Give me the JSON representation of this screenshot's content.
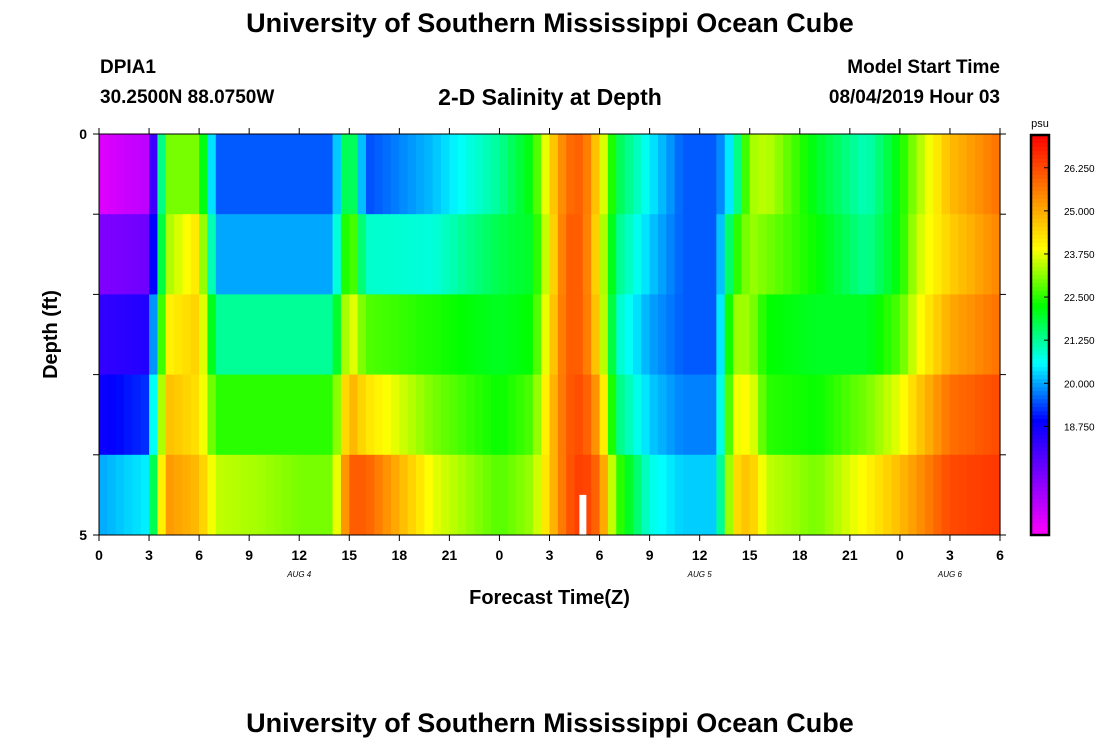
{
  "header": {
    "title": "University of Southern Mississippi Ocean Cube",
    "station_id": "DPIA1",
    "coords": "30.2500N 88.0750W",
    "plot_title": "2-D Salinity at Depth",
    "model_start_label": "Model Start Time",
    "model_start_value": "08/04/2019 Hour 03"
  },
  "footer": {
    "title": "University of Southern Mississippi Ocean Cube"
  },
  "chart_data": {
    "type": "heatmap",
    "title": "2-D Salinity at Depth",
    "xlabel": "Forecast Time(Z)",
    "ylabel": "Depth (ft)",
    "x_hours_from_start": [
      0,
      54
    ],
    "x_tick_labels": [
      "0",
      "3",
      "6",
      "9",
      "12",
      "15",
      "18",
      "21",
      "0",
      "3",
      "6",
      "9",
      "12",
      "15",
      "18",
      "21",
      "0",
      "3",
      "6"
    ],
    "date_labels": [
      {
        "text": "AUG 4",
        "at_hour": 12
      },
      {
        "text": "AUG 5",
        "at_hour": 36
      },
      {
        "text": "AUG 6",
        "at_hour": 51
      }
    ],
    "y_tick_labels": [
      "0",
      "5"
    ],
    "ylim": [
      0,
      5
    ],
    "depth_levels": [
      "0-1",
      "1-2",
      "2-3",
      "3-4",
      "4-5"
    ],
    "time_nodes": [
      0,
      3,
      4,
      6,
      7,
      10,
      12,
      14,
      15,
      16,
      20,
      24,
      26,
      27,
      28,
      29,
      30,
      31,
      33,
      35,
      37,
      38,
      39,
      40,
      43,
      46,
      48,
      49,
      51,
      54
    ],
    "values": [
      [
        16.0,
        16.5,
        23.0,
        22.5,
        19.5,
        19.5,
        19.5,
        19.5,
        21.8,
        19.0,
        20.5,
        21.0,
        22.5,
        24.5,
        25.5,
        26.0,
        24.5,
        21.8,
        20.5,
        19.5,
        19.5,
        20.0,
        23.0,
        23.5,
        21.5,
        21.0,
        22.5,
        23.0,
        25.0,
        26.0
      ],
      [
        16.0,
        16.5,
        23.0,
        23.5,
        19.5,
        19.5,
        19.5,
        19.5,
        23.0,
        19.8,
        19.8,
        21.5,
        22.0,
        24.0,
        26.0,
        26.0,
        24.0,
        21.8,
        20.5,
        19.5,
        19.5,
        21.5,
        23.5,
        23.5,
        22.5,
        21.0,
        22.0,
        23.5,
        24.5,
        25.5
      ],
      [
        18.5,
        18.5,
        23.5,
        25.0,
        20.5,
        20.5,
        20.5,
        20.5,
        23.5,
        22.0,
        21.8,
        22.0,
        22.0,
        24.0,
        26.0,
        26.0,
        24.0,
        21.0,
        20.0,
        19.5,
        19.5,
        23.0,
        23.0,
        22.5,
        22.0,
        21.5,
        22.5,
        23.5,
        24.5,
        25.5
      ],
      [
        18.0,
        18.5,
        24.5,
        24.0,
        22.0,
        22.0,
        22.0,
        22.0,
        24.5,
        23.5,
        23.0,
        22.0,
        22.5,
        24.5,
        26.0,
        26.0,
        24.5,
        21.0,
        20.0,
        19.5,
        19.5,
        23.5,
        23.5,
        22.0,
        22.0,
        22.5,
        23.0,
        24.0,
        25.5,
        26.0
      ],
      [
        19.5,
        20.0,
        25.0,
        24.5,
        23.0,
        23.0,
        23.0,
        23.0,
        25.5,
        25.0,
        23.0,
        22.5,
        23.0,
        24.5,
        26.0,
        26.5,
        25.5,
        22.0,
        20.5,
        20.0,
        20.0,
        24.0,
        24.5,
        23.0,
        22.5,
        23.5,
        24.5,
        25.0,
        26.0,
        26.5
      ],
      [
        20.5,
        21.0,
        25.5,
        25.0,
        24.0,
        23.5,
        23.0,
        23.0,
        26.5,
        27.0,
        24.5,
        23.0,
        23.5,
        24.5,
        26.0,
        26.5,
        26.0,
        23.5,
        21.0,
        20.5,
        20.5,
        24.5,
        25.0,
        24.0,
        23.5,
        24.5,
        25.0,
        25.5,
        26.5,
        26.5
      ]
    ],
    "colorbar": {
      "unit": "psu",
      "range": [
        15.6,
        27.2
      ],
      "tick_labels": [
        "18.750",
        "20.000",
        "21.250",
        "22.500",
        "23.750",
        "25.000",
        "26.250"
      ],
      "colors": [
        "#ff00ff",
        "#8000ff",
        "#0000ff",
        "#00ffff",
        "#00ff00",
        "#ffff00",
        "#ff8000",
        "#ff0000"
      ]
    },
    "marker": {
      "at_hour": 29,
      "depth_from": 4.5,
      "depth_to": 5.0,
      "color": "#ffffff"
    }
  }
}
